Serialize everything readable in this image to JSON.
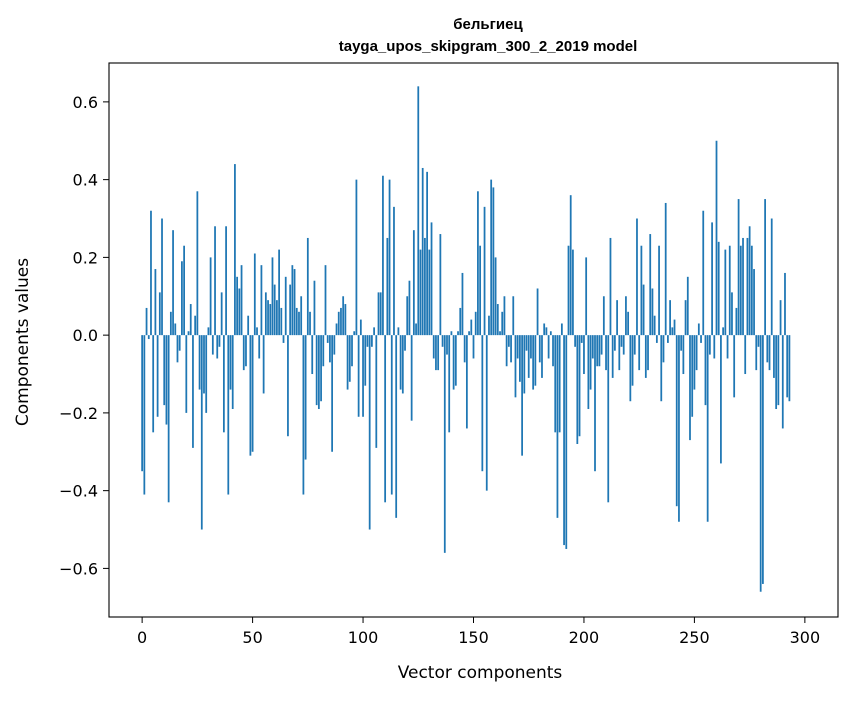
{
  "chart_data": {
    "type": "bar",
    "title": "бельгиец",
    "subtitle": "tayga_upos_skipgram_300_2_2019 model",
    "xlabel": "Vector components",
    "ylabel": "Components values",
    "xlim": [
      -15,
      315
    ],
    "ylim": [
      -0.725,
      0.7
    ],
    "xticks": [
      0,
      50,
      100,
      150,
      200,
      250,
      300
    ],
    "yticks": [
      -0.6,
      -0.4,
      -0.2,
      0.0,
      0.2,
      0.4,
      0.6
    ],
    "xtick_labels": [
      "0",
      "50",
      "100",
      "150",
      "200",
      "250",
      "300"
    ],
    "ytick_labels": [
      "−0.6",
      "−0.4",
      "−0.2",
      "0.0",
      "0.2",
      "0.4",
      "0.6"
    ],
    "bar_color": "#1f77b4",
    "grid": false,
    "values": [
      -0.35,
      -0.41,
      0.07,
      -0.01,
      0.32,
      -0.25,
      0.17,
      -0.21,
      0.11,
      0.3,
      -0.18,
      -0.23,
      -0.43,
      0.06,
      0.27,
      0.03,
      -0.07,
      -0.04,
      0.19,
      0.23,
      -0.2,
      0.01,
      0.08,
      -0.29,
      0.05,
      0.37,
      -0.14,
      -0.5,
      -0.15,
      -0.2,
      0.02,
      0.2,
      -0.05,
      0.28,
      -0.06,
      -0.03,
      0.11,
      -0.25,
      0.28,
      -0.41,
      -0.14,
      -0.19,
      0.44,
      0.15,
      0.12,
      0.18,
      -0.09,
      -0.08,
      0.05,
      -0.31,
      -0.3,
      0.21,
      0.02,
      -0.06,
      0.18,
      -0.15,
      0.11,
      0.09,
      0.08,
      0.2,
      0.13,
      0.09,
      0.22,
      0.07,
      -0.02,
      0.15,
      -0.26,
      0.13,
      0.18,
      0.17,
      0.07,
      0.06,
      0.1,
      -0.41,
      -0.32,
      0.25,
      0.06,
      -0.1,
      0.14,
      -0.18,
      -0.19,
      -0.17,
      -0.08,
      0.18,
      -0.02,
      -0.07,
      -0.3,
      -0.05,
      0.03,
      0.06,
      0.07,
      0.1,
      0.08,
      -0.14,
      -0.12,
      -0.08,
      0.01,
      0.4,
      -0.21,
      0.04,
      -0.21,
      -0.13,
      -0.03,
      -0.5,
      -0.03,
      0.02,
      -0.29,
      0.11,
      0.11,
      0.41,
      -0.43,
      0.25,
      0.4,
      -0.41,
      0.33,
      -0.47,
      0.02,
      -0.14,
      -0.15,
      -0.04,
      0.1,
      0.14,
      -0.22,
      0.27,
      0.03,
      0.64,
      0.22,
      0.43,
      0.25,
      0.42,
      0.22,
      0.29,
      -0.06,
      -0.09,
      -0.09,
      0.26,
      -0.03,
      -0.56,
      -0.05,
      -0.25,
      0.01,
      -0.14,
      -0.13,
      0.01,
      0.07,
      0.16,
      -0.07,
      -0.24,
      0.01,
      0.04,
      -0.06,
      0.06,
      0.37,
      0.23,
      -0.35,
      0.33,
      -0.4,
      0.05,
      0.4,
      0.38,
      0.2,
      0.08,
      0.01,
      0.06,
      0.1,
      -0.08,
      -0.03,
      -0.07,
      0.1,
      -0.16,
      -0.06,
      -0.12,
      -0.31,
      -0.15,
      -0.04,
      -0.11,
      -0.06,
      -0.14,
      -0.13,
      0.12,
      -0.07,
      -0.11,
      0.03,
      0.02,
      -0.06,
      0.01,
      -0.08,
      -0.25,
      -0.47,
      -0.25,
      0.03,
      -0.54,
      -0.55,
      0.23,
      0.36,
      0.22,
      -0.03,
      -0.28,
      -0.26,
      -0.02,
      -0.1,
      0.2,
      -0.19,
      -0.14,
      -0.06,
      -0.35,
      -0.08,
      -0.08,
      -0.05,
      0.1,
      -0.09,
      -0.43,
      0.25,
      -0.11,
      -0.04,
      0.09,
      -0.09,
      -0.03,
      -0.05,
      0.1,
      0.06,
      -0.17,
      -0.13,
      -0.05,
      0.3,
      -0.09,
      0.23,
      0.13,
      -0.11,
      -0.09,
      0.26,
      0.12,
      0.05,
      -0.02,
      0.23,
      -0.17,
      -0.07,
      0.34,
      -0.02,
      0.09,
      0.02,
      0.04,
      -0.44,
      -0.48,
      -0.04,
      -0.1,
      0.09,
      0.15,
      -0.27,
      -0.21,
      -0.14,
      -0.09,
      0.03,
      -0.02,
      0.32,
      -0.18,
      -0.48,
      -0.05,
      0.29,
      -0.06,
      0.5,
      0.24,
      -0.33,
      0.02,
      0.22,
      -0.06,
      0.23,
      0.11,
      -0.16,
      0.07,
      0.35,
      0.23,
      0.25,
      -0.1,
      0.25,
      0.28,
      0.23,
      0.17,
      -0.09,
      -0.03,
      -0.66,
      -0.64,
      0.35,
      -0.07,
      -0.09,
      0.3,
      -0.11,
      -0.19,
      -0.18,
      0.09,
      -0.24,
      0.16,
      -0.16,
      -0.17
    ]
  }
}
